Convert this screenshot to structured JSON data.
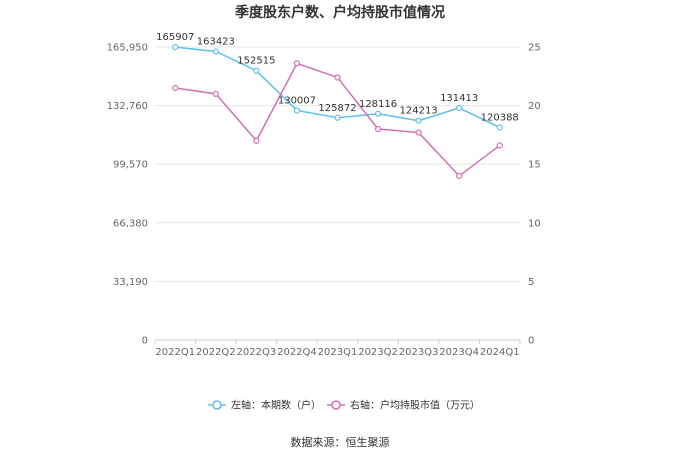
{
  "chart_data": {
    "type": "line",
    "title": "季度股东户数、户均持股市值情况",
    "categories": [
      "2022Q1",
      "2022Q2",
      "2022Q3",
      "2022Q4",
      "2023Q1",
      "2023Q2",
      "2023Q3",
      "2023Q4",
      "2024Q1"
    ],
    "left_axis": {
      "ticks": [
        "0",
        "33,190",
        "66,380",
        "99,570",
        "132,760",
        "165,950"
      ],
      "min": 0,
      "max": 165950
    },
    "right_axis": {
      "ticks": [
        "0",
        "5",
        "10",
        "15",
        "20",
        "25"
      ],
      "min": 0,
      "max": 25
    },
    "series": [
      {
        "name": "左轴：本期数（户）",
        "axis": "left",
        "color": "#5bc0eb",
        "values": [
          165907,
          163423,
          152515,
          130007,
          125872,
          128116,
          124213,
          131413,
          120388
        ],
        "labels": [
          "165907",
          "163423",
          "152515",
          "130007",
          "125872",
          "128116",
          "124213",
          "131413",
          "120388"
        ]
      },
      {
        "name": "右轴：户均持股市值（万元）",
        "axis": "right",
        "color": "#d26fb1",
        "values": [
          21.5,
          21.0,
          17.0,
          23.6,
          22.4,
          18.0,
          17.7,
          14.0,
          16.6
        ]
      }
    ],
    "grid": true,
    "legend_position": "bottom"
  },
  "source": "数据来源：恒生聚源"
}
